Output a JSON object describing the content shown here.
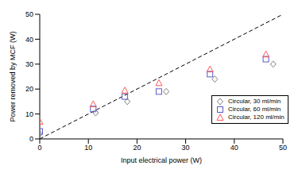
{
  "chart_data": {
    "type": "scatter",
    "x_label": "Input electrical power (W)",
    "y_label": "Power removed by MCF (W)",
    "xlim": [
      0,
      50
    ],
    "xticks": [
      0,
      10,
      20,
      30,
      40,
      50
    ],
    "ylim": [
      0,
      50
    ],
    "yticks": [
      0,
      10,
      20,
      30,
      40,
      50
    ],
    "grid": false,
    "legend": "lower right",
    "series": [
      {
        "type": "line",
        "line_style": "dashed",
        "color": "#000000",
        "x": [
          0,
          50
        ],
        "values": [
          0,
          50
        ]
      },
      {
        "name": "Circular, 30 ml/min",
        "color": "#7f7f7f",
        "marker": "diamond",
        "x": [
          0,
          11.5,
          18,
          26,
          36,
          48
        ],
        "values": [
          2,
          10.5,
          15,
          19,
          24,
          30
        ]
      },
      {
        "name": "Circular, 60 ml/min",
        "color": "#5b5bc8",
        "marker": "square",
        "x": [
          0,
          11,
          17.5,
          24.5,
          35,
          46.5
        ],
        "values": [
          3,
          12,
          17,
          19,
          26,
          32
        ]
      },
      {
        "name": "Circular, 120 ml/min",
        "color": "#ff5a5a",
        "marker": "triangle",
        "x": [
          0,
          11,
          17.5,
          24.5,
          35,
          46.5
        ],
        "values": [
          7,
          14,
          19.5,
          22.5,
          28,
          34
        ]
      }
    ]
  }
}
